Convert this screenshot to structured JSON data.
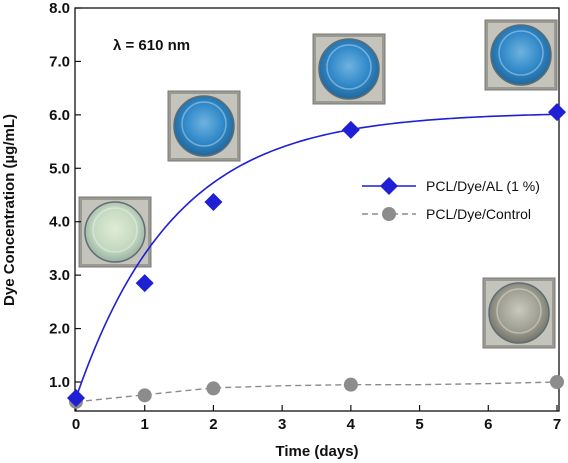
{
  "chart_data": {
    "type": "line",
    "xlabel": "Time (days)",
    "ylabel": "Dye Concentration (µg/mL)",
    "xlim": [
      0,
      7
    ],
    "ylim": [
      0.8,
      8.0
    ],
    "x_ticks": [
      "0",
      "1",
      "2",
      "3",
      "4",
      "5",
      "6",
      "7"
    ],
    "y_ticks": [
      "1.0",
      "2.0",
      "3.0",
      "4.0",
      "5.0",
      "6.0",
      "7.0",
      "8.0"
    ],
    "annotation": "λ = 610 nm",
    "grid": false,
    "legend_position": "right",
    "series": [
      {
        "name": "PCL/Dye/AL (1 %)",
        "color": "#1f1fd6",
        "marker": "diamond",
        "line": "solid",
        "x": [
          0,
          1,
          2,
          4,
          7
        ],
        "y": [
          0.7,
          2.85,
          4.37,
          5.72,
          6.05
        ]
      },
      {
        "name": "PCL/Dye/Control",
        "color": "#8c8c8c",
        "marker": "circle",
        "line": "dashed",
        "x": [
          0,
          1,
          2,
          4,
          7
        ],
        "y": [
          0.63,
          0.75,
          0.88,
          0.95,
          1.0
        ]
      }
    ],
    "well_photos": [
      {
        "day": 0,
        "tint": "light-green"
      },
      {
        "day": 2,
        "tint": "blue"
      },
      {
        "day": 4,
        "tint": "blue"
      },
      {
        "day": 7,
        "tint": "blue"
      },
      {
        "day": 7,
        "tint": "grey",
        "series": "PCL/Dye/Control"
      }
    ]
  }
}
